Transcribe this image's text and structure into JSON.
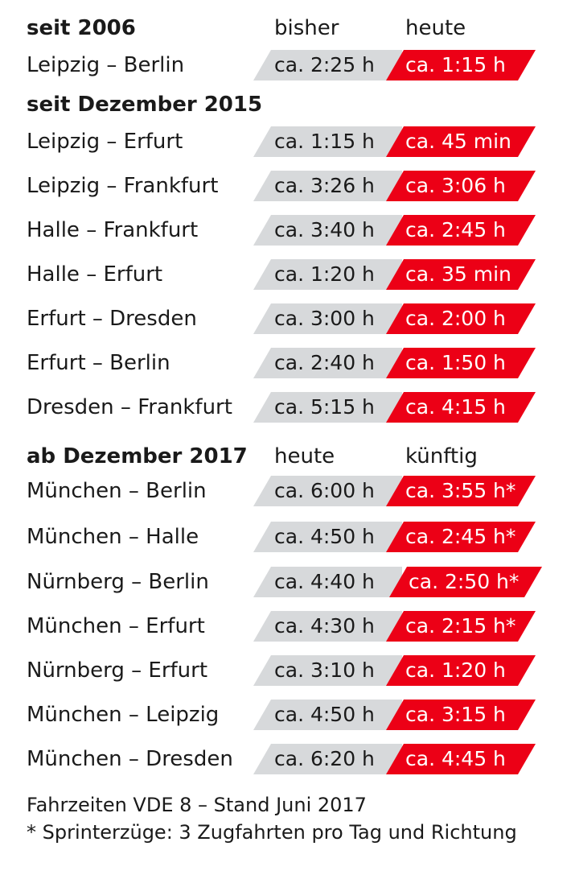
{
  "section1": {
    "title": "seit 2006",
    "col_old": "bisher",
    "col_new": "heute",
    "rows": [
      {
        "route": "Leipzig – Berlin",
        "old": "ca. 2:25 h",
        "new": "ca. 1:15 h"
      }
    ]
  },
  "section2": {
    "title": "seit Dezember 2015",
    "rows": [
      {
        "route": "Leipzig – Erfurt",
        "old": "ca. 1:15 h",
        "new": "ca. 45 min"
      },
      {
        "route": "Leipzig – Frankfurt",
        "old": "ca. 3:26 h",
        "new": "ca. 3:06 h"
      },
      {
        "route": "Halle – Frankfurt",
        "old": "ca. 3:40 h",
        "new": "ca. 2:45 h"
      },
      {
        "route": "Halle – Erfurt",
        "old": "ca. 1:20 h",
        "new": "ca. 35 min"
      },
      {
        "route": "Erfurt – Dresden",
        "old": "ca. 3:00 h",
        "new": "ca. 2:00 h"
      },
      {
        "route": "Erfurt – Berlin",
        "old": "ca. 2:40 h",
        "new": "ca. 1:50 h"
      },
      {
        "route": "Dresden – Frankfurt",
        "old": "ca. 5:15 h",
        "new": "ca. 4:15 h"
      }
    ]
  },
  "section3": {
    "title": "ab Dezember 2017",
    "col_old": "heute",
    "col_new": "künftig",
    "rows": [
      {
        "route": "München – Berlin",
        "old": "ca. 6:00 h",
        "new": "ca. 3:55 h*"
      },
      {
        "route": "München – Halle",
        "old": "ca. 4:50 h",
        "new": "ca. 2:45 h*"
      },
      {
        "route": "Nürnberg – Berlin",
        "old": "ca. 4:40 h",
        "new": "ca. 2:50 h*"
      },
      {
        "route": "München – Erfurt",
        "old": "ca. 4:30 h",
        "new": "ca. 2:15 h*"
      },
      {
        "route": "Nürnberg – Erfurt",
        "old": "ca. 3:10 h",
        "new": "ca. 1:20 h"
      },
      {
        "route": "München – Leipzig",
        "old": "ca. 4:50 h",
        "new": "ca. 3:15 h"
      },
      {
        "route": "München – Dresden",
        "old": "ca. 6:20 h",
        "new": "ca. 4:45 h"
      }
    ]
  },
  "footer": {
    "line1": "Fahrzeiten VDE 8 – Stand Juni 2017",
    "line2": "* Sprinterzüge: 3 Zugfahrten pro Tag und Richtung"
  },
  "colors": {
    "old_bg": "#d7d9db",
    "new_bg": "#ec0016"
  }
}
